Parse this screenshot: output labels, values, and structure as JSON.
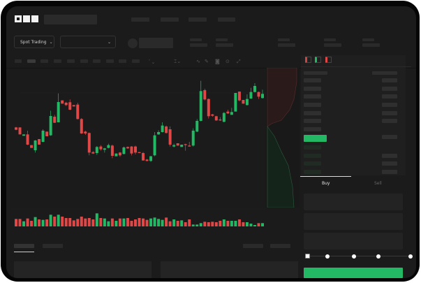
{
  "header": {
    "logo": "OKX"
  },
  "toolbar": {
    "market_selector": "Spot Trading"
  },
  "order_form": {
    "buy_tab": "Buy",
    "sell_tab": "Sell",
    "leverage_steps": 5,
    "selected_step": 0
  },
  "colors": {
    "up": "#22b864",
    "down": "#e04848",
    "background": "#1b1b1b",
    "panel": "#2a2a2a"
  },
  "chart_data": {
    "type": "candlestick",
    "candles": [
      {
        "o": 786,
        "c": 776,
        "h": 788,
        "l": 774
      },
      {
        "o": 786,
        "c": 756,
        "h": 786,
        "l": 756
      },
      {
        "o": 750,
        "c": 756,
        "h": 756,
        "l": 750
      },
      {
        "o": 756,
        "c": 712,
        "h": 772,
        "l": 710
      },
      {
        "o": 710,
        "c": 698,
        "h": 710,
        "l": 698
      },
      {
        "o": 688,
        "c": 730,
        "h": 732,
        "l": 678
      },
      {
        "o": 736,
        "c": 712,
        "h": 736,
        "l": 712
      },
      {
        "o": 724,
        "c": 772,
        "h": 778,
        "l": 722
      },
      {
        "o": 768,
        "c": 748,
        "h": 768,
        "l": 748
      },
      {
        "o": 752,
        "c": 835,
        "h": 858,
        "l": 750
      },
      {
        "o": 832,
        "c": 806,
        "h": 840,
        "l": 805
      },
      {
        "o": 808,
        "c": 895,
        "h": 932,
        "l": 808
      },
      {
        "o": 902,
        "c": 888,
        "h": 902,
        "l": 888
      },
      {
        "o": 892,
        "c": 882,
        "h": 896,
        "l": 878
      },
      {
        "o": 894,
        "c": 862,
        "h": 906,
        "l": 860
      },
      {
        "o": 882,
        "c": 876,
        "h": 882,
        "l": 876
      },
      {
        "o": 884,
        "c": 822,
        "h": 892,
        "l": 820
      },
      {
        "o": 822,
        "c": 760,
        "h": 826,
        "l": 758
      },
      {
        "o": 768,
        "c": 760,
        "h": 772,
        "l": 754
      },
      {
        "o": 762,
        "c": 678,
        "h": 764,
        "l": 666
      },
      {
        "o": 680,
        "c": 674,
        "h": 684,
        "l": 672
      },
      {
        "o": 676,
        "c": 702,
        "h": 706,
        "l": 668
      },
      {
        "o": 704,
        "c": 692,
        "h": 710,
        "l": 686
      },
      {
        "o": 690,
        "c": 696,
        "h": 698,
        "l": 678
      },
      {
        "o": 698,
        "c": 710,
        "h": 716,
        "l": 696
      },
      {
        "o": 708,
        "c": 664,
        "h": 712,
        "l": 654
      },
      {
        "o": 662,
        "c": 674,
        "h": 674,
        "l": 662
      },
      {
        "o": 678,
        "c": 666,
        "h": 680,
        "l": 660
      },
      {
        "o": 672,
        "c": 700,
        "h": 704,
        "l": 670
      },
      {
        "o": 702,
        "c": 696,
        "h": 704,
        "l": 694
      },
      {
        "o": 704,
        "c": 674,
        "h": 706,
        "l": 666
      },
      {
        "o": 704,
        "c": 678,
        "h": 708,
        "l": 670
      },
      {
        "o": 680,
        "c": 676,
        "h": 680,
        "l": 676
      },
      {
        "o": 676,
        "c": 644,
        "h": 680,
        "l": 644
      },
      {
        "o": 648,
        "c": 642,
        "h": 650,
        "l": 640
      },
      {
        "o": 642,
        "c": 662,
        "h": 664,
        "l": 638
      },
      {
        "o": 666,
        "c": 752,
        "h": 766,
        "l": 662
      },
      {
        "o": 756,
        "c": 766,
        "h": 774,
        "l": 754
      },
      {
        "o": 766,
        "c": 794,
        "h": 808,
        "l": 764
      },
      {
        "o": 790,
        "c": 762,
        "h": 794,
        "l": 760
      },
      {
        "o": 778,
        "c": 712,
        "h": 790,
        "l": 704
      },
      {
        "o": 704,
        "c": 710,
        "h": 716,
        "l": 700
      },
      {
        "o": 718,
        "c": 708,
        "h": 718,
        "l": 708
      },
      {
        "o": 702,
        "c": 712,
        "h": 712,
        "l": 702
      },
      {
        "o": 714,
        "c": 710,
        "h": 716,
        "l": 686
      },
      {
        "o": 708,
        "c": 704,
        "h": 724,
        "l": 704
      },
      {
        "o": 708,
        "c": 772,
        "h": 782,
        "l": 704
      },
      {
        "o": 768,
        "c": 814,
        "h": 822,
        "l": 766
      },
      {
        "o": 814,
        "c": 942,
        "h": 986,
        "l": 812
      },
      {
        "o": 946,
        "c": 906,
        "h": 952,
        "l": 902
      },
      {
        "o": 908,
        "c": 834,
        "h": 910,
        "l": 824
      },
      {
        "o": 842,
        "c": 836,
        "h": 844,
        "l": 832
      },
      {
        "o": 834,
        "c": 816,
        "h": 836,
        "l": 814
      },
      {
        "o": 820,
        "c": 816,
        "h": 830,
        "l": 814
      },
      {
        "o": 810,
        "c": 848,
        "h": 852,
        "l": 808
      },
      {
        "o": 854,
        "c": 846,
        "h": 862,
        "l": 844
      },
      {
        "o": 840,
        "c": 852,
        "h": 870,
        "l": 840
      },
      {
        "o": 854,
        "c": 934,
        "h": 934,
        "l": 854
      },
      {
        "o": 940,
        "c": 902,
        "h": 940,
        "l": 898
      },
      {
        "o": 904,
        "c": 888,
        "h": 904,
        "l": 888
      },
      {
        "o": 882,
        "c": 908,
        "h": 928,
        "l": 880
      },
      {
        "o": 910,
        "c": 938,
        "h": 956,
        "l": 908
      },
      {
        "o": 938,
        "c": 964,
        "h": 976,
        "l": 936
      },
      {
        "o": 938,
        "c": 918,
        "h": 940,
        "l": 908
      },
      {
        "o": 912,
        "c": 930,
        "h": 948,
        "l": 910
      }
    ],
    "volume": [
      32,
      32,
      22,
      34,
      24,
      40,
      30,
      28,
      30,
      50,
      42,
      50,
      42,
      36,
      36,
      26,
      32,
      42,
      34,
      36,
      30,
      56,
      36,
      34,
      22,
      34,
      24,
      34,
      34,
      36,
      24,
      30,
      36,
      34,
      28,
      34,
      38,
      32,
      28,
      38,
      22,
      30,
      24,
      26,
      18,
      30,
      8,
      8,
      14,
      20,
      18,
      20,
      18,
      24,
      30,
      24,
      24,
      24,
      30,
      18,
      18,
      12,
      6,
      14,
      14
    ]
  }
}
